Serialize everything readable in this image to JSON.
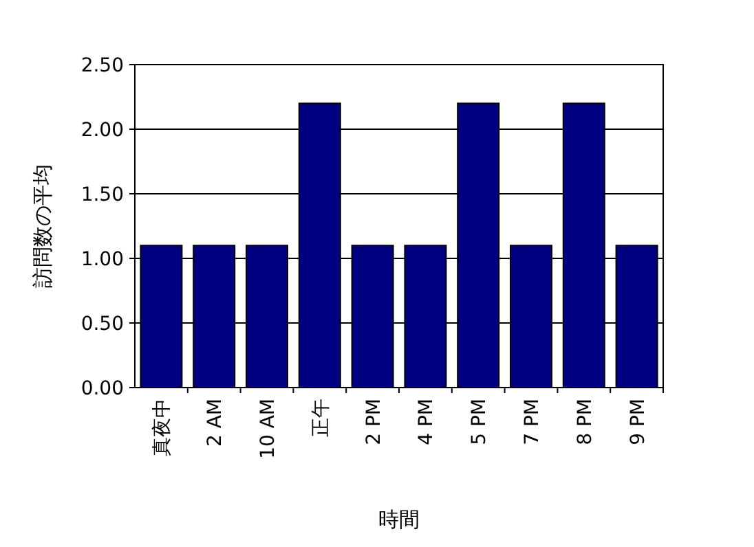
{
  "chart_data": {
    "type": "bar",
    "xlabel": "時間",
    "ylabel": "訪問数の平均",
    "categories": [
      "真夜中",
      "2 AM",
      "10 AM",
      "正午",
      "2 PM",
      "4 PM",
      "5 PM",
      "7 PM",
      "8 PM",
      "9 PM"
    ],
    "values": [
      1.1,
      1.1,
      1.1,
      2.2,
      1.1,
      1.1,
      2.2,
      1.1,
      2.2,
      1.1
    ],
    "color": "#000080",
    "ylim": [
      0,
      2.5
    ],
    "yticks": [
      {
        "value": 0,
        "label": "0.00"
      },
      {
        "value": 0.5,
        "label": "0.50"
      },
      {
        "value": 1,
        "label": "1.00"
      },
      {
        "value": 1.5,
        "label": "1.50"
      },
      {
        "value": 2,
        "label": "2.00"
      },
      {
        "value": 2.5,
        "label": "2.50"
      }
    ],
    "grid": "y"
  }
}
